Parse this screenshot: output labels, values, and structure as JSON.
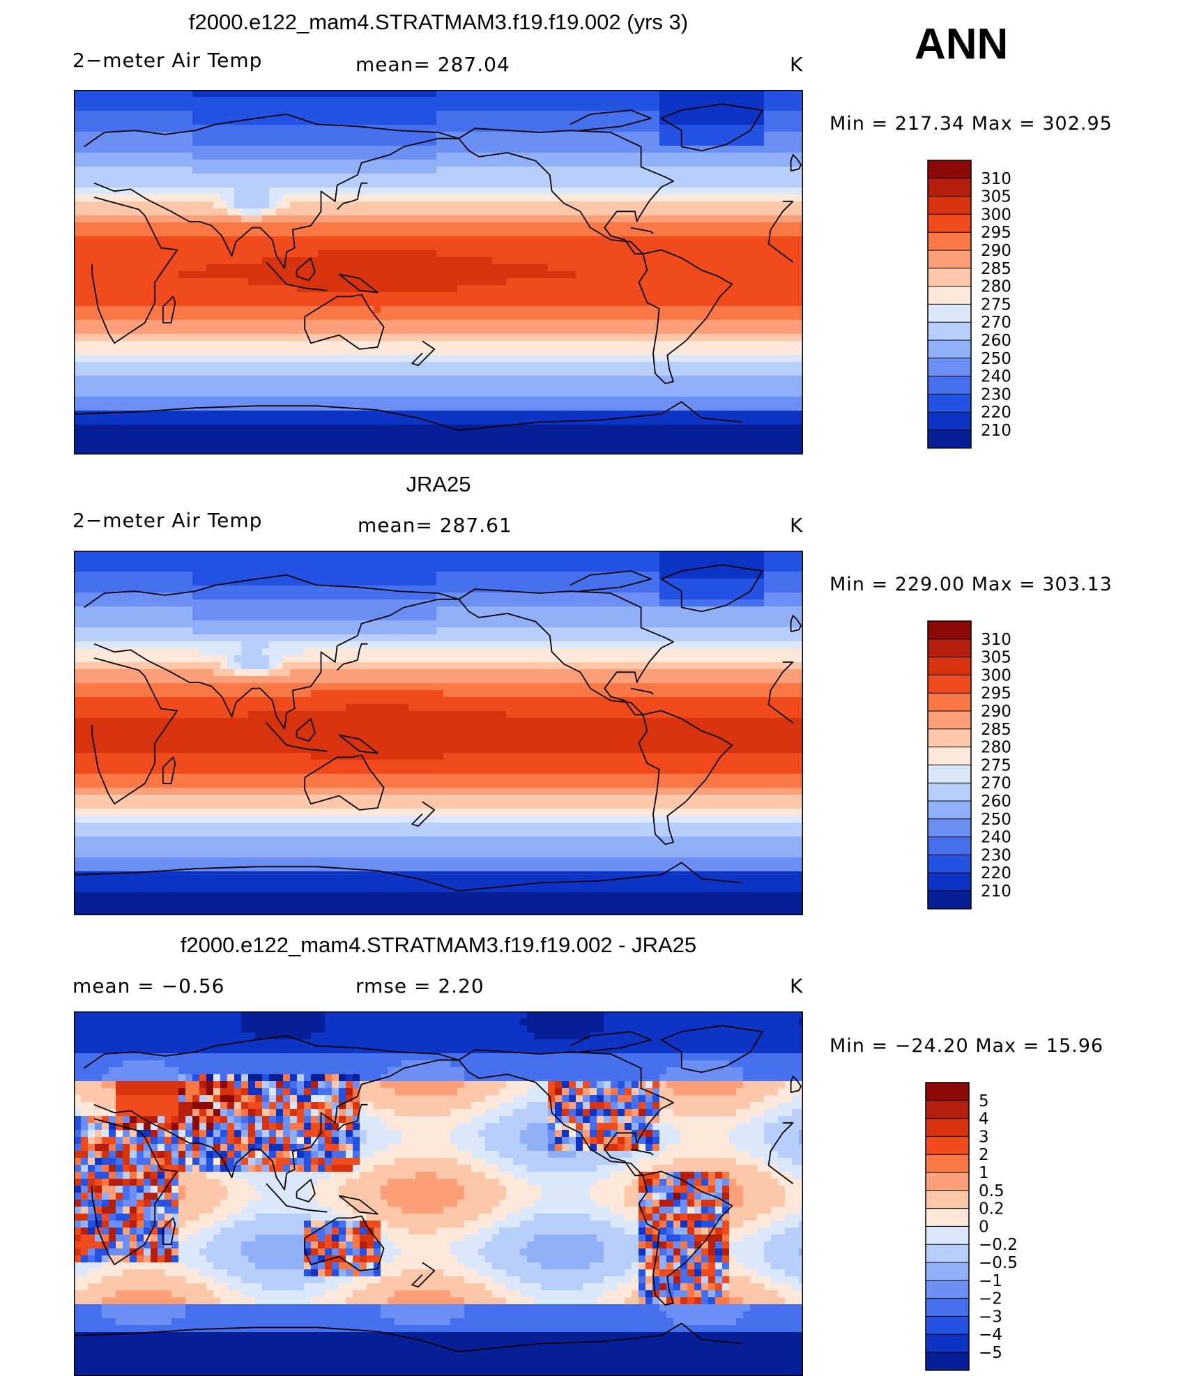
{
  "season": "ANN",
  "panels": [
    {
      "title": "f2000.e122_mam4.STRATMAM3.f19.f19.002 (yrs 3)",
      "left": "2−meter Air Temp",
      "center": "mean=  287.04",
      "units": "K",
      "minmax": "Min  =  217.34  Max  =  302.95",
      "field": "model",
      "colorbar": {
        "labels": [
          "310",
          "305",
          "300",
          "295",
          "290",
          "285",
          "280",
          "275",
          "270",
          "260",
          "250",
          "240",
          "230",
          "220",
          "210"
        ],
        "colors": [
          "#8b0a05",
          "#b51d0c",
          "#d7330f",
          "#f04a1d",
          "#f97845",
          "#fca07a",
          "#fdc8aa",
          "#fde8da",
          "#dbe8fb",
          "#b8cefb",
          "#91b0fa",
          "#6b8ff5",
          "#4770ee",
          "#2452e3",
          "#0e34c6",
          "#061f97"
        ]
      }
    },
    {
      "title": "JRA25",
      "left": "2−meter Air Temp",
      "center": "mean=  287.61",
      "units": "K",
      "minmax": "Min  =  229.00  Max  =  303.13",
      "field": "obs",
      "colorbar": {
        "labels": [
          "310",
          "305",
          "300",
          "295",
          "290",
          "285",
          "280",
          "275",
          "270",
          "260",
          "250",
          "240",
          "230",
          "220",
          "210"
        ],
        "colors": [
          "#8b0a05",
          "#b51d0c",
          "#d7330f",
          "#f04a1d",
          "#f97845",
          "#fca07a",
          "#fdc8aa",
          "#fde8da",
          "#dbe8fb",
          "#b8cefb",
          "#91b0fa",
          "#6b8ff5",
          "#4770ee",
          "#2452e3",
          "#0e34c6",
          "#061f97"
        ]
      }
    },
    {
      "title": "f2000.e122_mam4.STRATMAM3.f19.f19.002 - JRA25",
      "left": "mean  =    −0.56",
      "center": "rmse  =     2.20",
      "units": "K",
      "minmax": "Min  =  −24.20  Max  =    15.96",
      "field": "diff",
      "colorbar": {
        "labels": [
          "5",
          "4",
          "3",
          "2",
          "1",
          "0.5",
          "0.2",
          "0",
          "−0.2",
          "−0.5",
          "−1",
          "−2",
          "−3",
          "−4",
          "−5"
        ],
        "colors": [
          "#8b0a05",
          "#b51d0c",
          "#d7330f",
          "#f04a1d",
          "#f97845",
          "#fca07a",
          "#fdc8aa",
          "#fde8da",
          "#dbe8fb",
          "#b8cefb",
          "#91b0fa",
          "#6b8ff5",
          "#4770ee",
          "#2452e3",
          "#0e34c6",
          "#061f97"
        ]
      }
    }
  ]
}
